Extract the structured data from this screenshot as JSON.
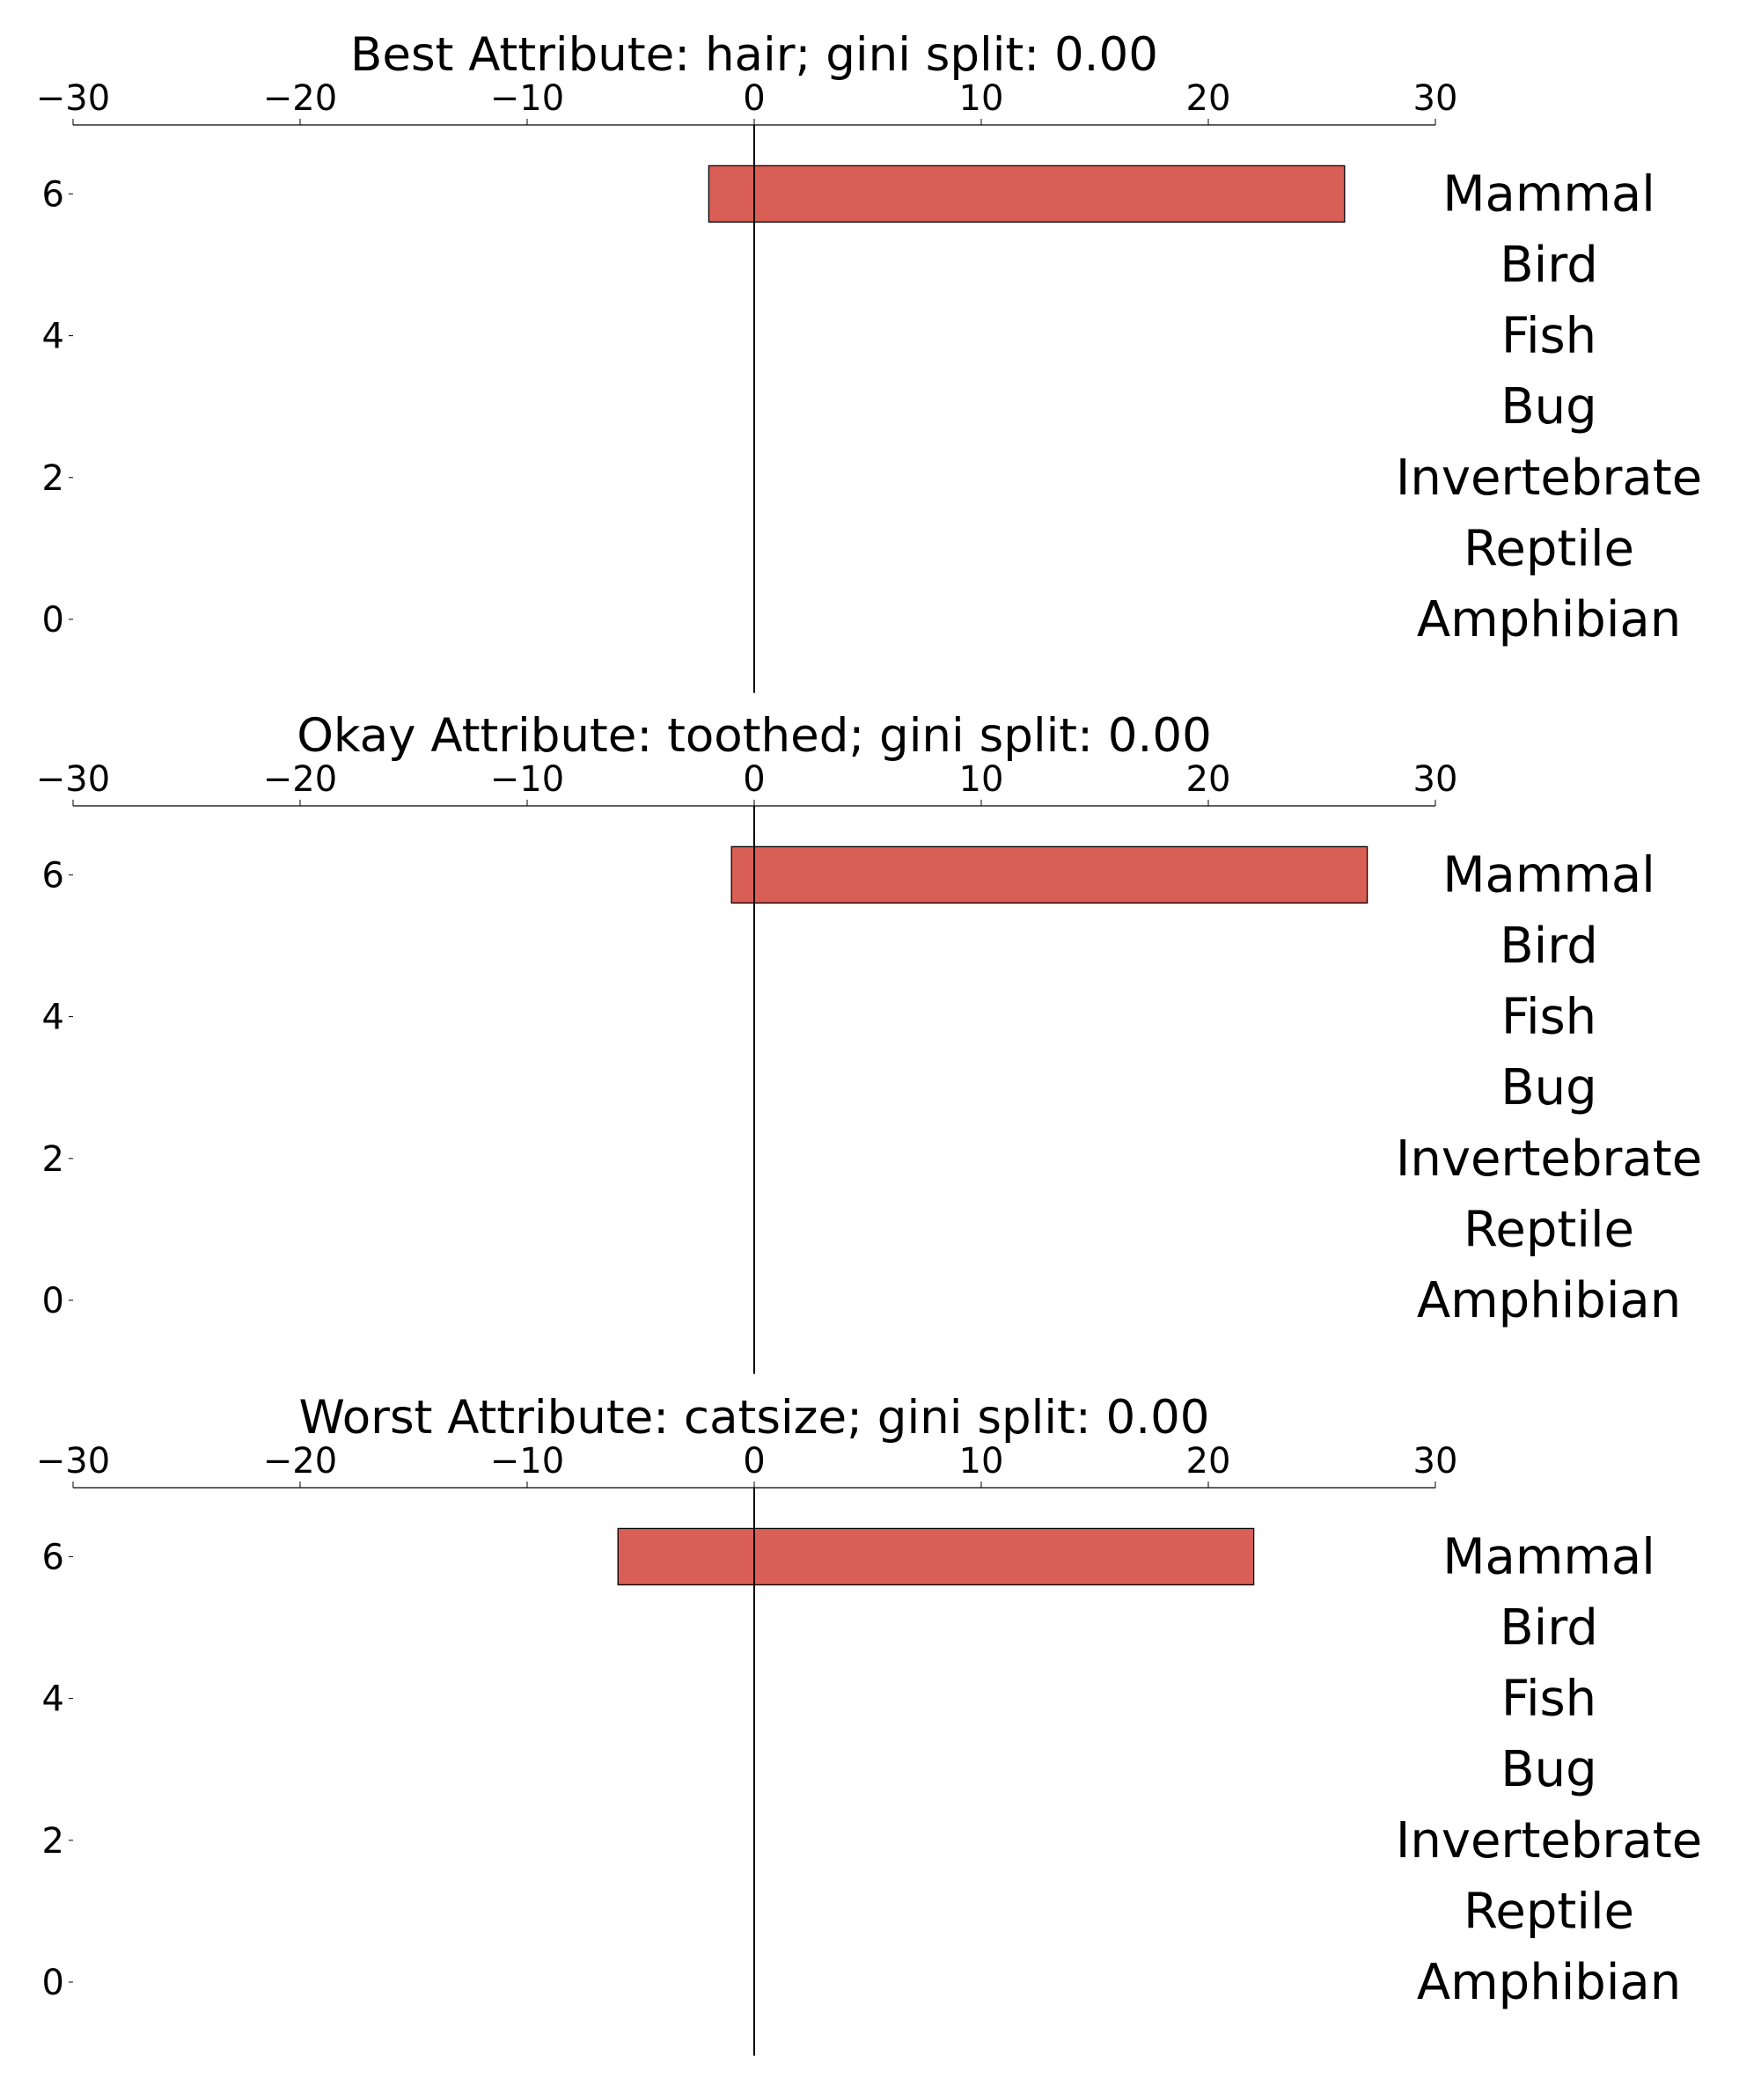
{
  "chart_data": [
    {
      "type": "bar",
      "orientation": "horizontal",
      "title": "Best Attribute: hair; gini split: 0.00",
      "xlim": [
        -30,
        30
      ],
      "ylim": [
        -1,
        7
      ],
      "xticks": [
        "−30",
        "−20",
        "−10",
        "0",
        "10",
        "20",
        "30"
      ],
      "xtick_values": [
        -30,
        -20,
        -10,
        0,
        10,
        20,
        30
      ],
      "yticks": [
        "6",
        "4",
        "2",
        "0"
      ],
      "ytick_values": [
        6,
        4,
        2,
        0
      ],
      "class_labels": [
        "Mammal",
        "Bird",
        "Fish",
        "Bug",
        "Invertebrate",
        "Reptile",
        "Amphibian"
      ],
      "class_positions": [
        6,
        5,
        4,
        3,
        2,
        1,
        0
      ],
      "bars": [
        {
          "category": "Mammal",
          "y": 6,
          "left": -2,
          "right": 26
        }
      ],
      "bar_color": "#d95f56",
      "grid": false
    },
    {
      "type": "bar",
      "orientation": "horizontal",
      "title": "Okay Attribute: toothed; gini split: 0.00",
      "xlim": [
        -30,
        30
      ],
      "ylim": [
        -1,
        7
      ],
      "xticks": [
        "−30",
        "−20",
        "−10",
        "0",
        "10",
        "20",
        "30"
      ],
      "xtick_values": [
        -30,
        -20,
        -10,
        0,
        10,
        20,
        30
      ],
      "yticks": [
        "6",
        "4",
        "2",
        "0"
      ],
      "ytick_values": [
        6,
        4,
        2,
        0
      ],
      "class_labels": [
        "Mammal",
        "Bird",
        "Fish",
        "Bug",
        "Invertebrate",
        "Reptile",
        "Amphibian"
      ],
      "class_positions": [
        6,
        5,
        4,
        3,
        2,
        1,
        0
      ],
      "bars": [
        {
          "category": "Mammal",
          "y": 6,
          "left": -1,
          "right": 27
        }
      ],
      "bar_color": "#d95f56",
      "grid": false
    },
    {
      "type": "bar",
      "orientation": "horizontal",
      "title": "Worst Attribute: catsize; gini split: 0.00",
      "xlim": [
        -30,
        30
      ],
      "ylim": [
        -1,
        7
      ],
      "xticks": [
        "−30",
        "−20",
        "−10",
        "0",
        "10",
        "20",
        "30"
      ],
      "xtick_values": [
        -30,
        -20,
        -10,
        0,
        10,
        20,
        30
      ],
      "yticks": [
        "6",
        "4",
        "2",
        "0"
      ],
      "ytick_values": [
        6,
        4,
        2,
        0
      ],
      "class_labels": [
        "Mammal",
        "Bird",
        "Fish",
        "Bug",
        "Invertebrate",
        "Reptile",
        "Amphibian"
      ],
      "class_positions": [
        6,
        5,
        4,
        3,
        2,
        1,
        0
      ],
      "bars": [
        {
          "category": "Mammal",
          "y": 6,
          "left": -6,
          "right": 22
        }
      ],
      "bar_color": "#d95f56",
      "grid": false
    }
  ]
}
